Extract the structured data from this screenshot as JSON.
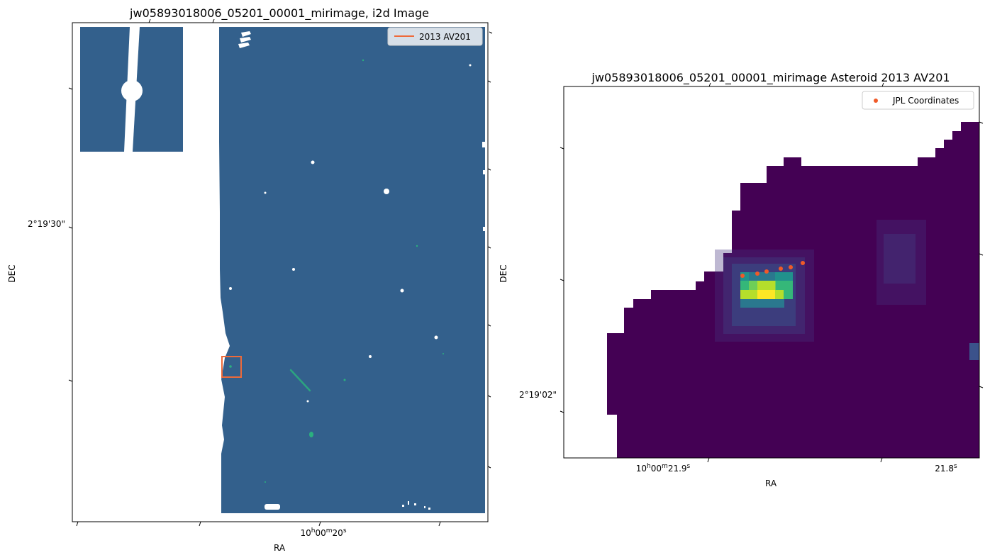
{
  "left_panel": {
    "title": "jw05893018006_05201_00001_mirimage,  i2d Image",
    "xlabel": "RA",
    "ylabel": "DEC",
    "x_tick": {
      "h": "10",
      "m": "00",
      "s": "20",
      "suffix": "s"
    },
    "y_tick": "2°19'30\"",
    "legend_label": "2013 AV201",
    "colors": {
      "field": "#33608c",
      "box": "#ee6a3a"
    }
  },
  "right_panel": {
    "title": "jw05893018006_05201_00001_mirimage Asteroid 2013 AV201",
    "xlabel": "RA",
    "ylabel": "DEC",
    "x_tick_1": {
      "h": "10",
      "m": "00",
      "s": "21.9",
      "suffix": "s"
    },
    "x_tick_2": {
      "main": "21.8",
      "suffix": "s"
    },
    "y_tick": "2°19'02\"",
    "legend_label": "JPL Coordinates",
    "colors": {
      "background": "#440154",
      "points": "#f05a28"
    },
    "jpl_point_count": 6
  }
}
